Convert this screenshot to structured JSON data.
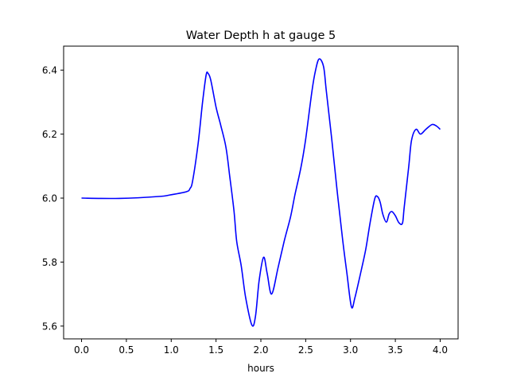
{
  "chart_data": {
    "type": "line",
    "title": "Water Depth h at gauge 5",
    "xlabel": "hours",
    "ylabel": "",
    "xlim": [
      -0.2,
      4.2
    ],
    "ylim": [
      5.56,
      6.475
    ],
    "xticks": [
      0.0,
      0.5,
      1.0,
      1.5,
      2.0,
      2.5,
      3.0,
      3.5,
      4.0
    ],
    "xtick_labels": [
      "0.0",
      "0.5",
      "1.0",
      "1.5",
      "2.0",
      "2.5",
      "3.0",
      "3.5",
      "4.0"
    ],
    "yticks": [
      5.6,
      5.8,
      6.0,
      6.2,
      6.4
    ],
    "ytick_labels": [
      "5.6",
      "5.8",
      "6.0",
      "6.2",
      "6.4"
    ],
    "grid": false,
    "series": [
      {
        "name": "h",
        "color": "#0000ff",
        "x": [
          0,
          0.42,
          0.86,
          0.99,
          1.17,
          1.21,
          1.24,
          1.3,
          1.35,
          1.39,
          1.41,
          1.44,
          1.5,
          1.55,
          1.61,
          1.65,
          1.7,
          1.73,
          1.78,
          1.83,
          1.9,
          1.94,
          1.98,
          2.03,
          2.07,
          2.12,
          2.19,
          2.26,
          2.33,
          2.38,
          2.45,
          2.5,
          2.57,
          2.61,
          2.65,
          2.7,
          2.73,
          2.79,
          2.85,
          2.91,
          2.96,
          3.01,
          3.05,
          3.12,
          3.17,
          3.22,
          3.27,
          3.3,
          3.33,
          3.36,
          3.4,
          3.43,
          3.46,
          3.5,
          3.54,
          3.58,
          3.6,
          3.65,
          3.68,
          3.73,
          3.78,
          3.84,
          3.91,
          3.96,
          4.0
        ],
        "y": [
          6.0,
          5.999,
          6.005,
          6.01,
          6.02,
          6.03,
          6.055,
          6.17,
          6.3,
          6.385,
          6.39,
          6.37,
          6.285,
          6.23,
          6.16,
          6.075,
          5.96,
          5.865,
          5.79,
          5.69,
          5.603,
          5.63,
          5.74,
          5.815,
          5.765,
          5.7,
          5.78,
          5.865,
          5.94,
          6.01,
          6.1,
          6.185,
          6.335,
          6.4,
          6.435,
          6.41,
          6.335,
          6.185,
          6.025,
          5.875,
          5.765,
          5.66,
          5.69,
          5.775,
          5.84,
          5.925,
          5.998,
          6.005,
          5.988,
          5.95,
          5.925,
          5.95,
          5.958,
          5.945,
          5.923,
          5.922,
          5.975,
          6.1,
          6.18,
          6.215,
          6.2,
          6.215,
          6.23,
          6.225,
          6.215
        ]
      }
    ]
  }
}
